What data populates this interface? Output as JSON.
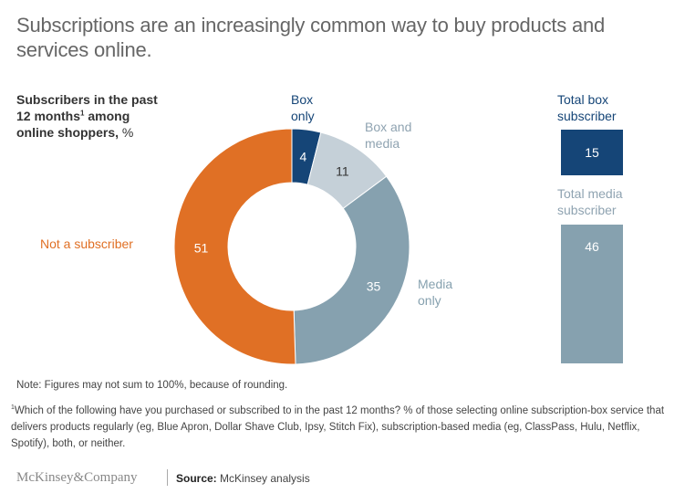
{
  "title": "Subscriptions are an increasingly common way to buy products and services online.",
  "subtitle": {
    "line1": "Subscribers in the past",
    "line2_text": "12 months",
    "line2_sup": "1",
    "line2_after": " among",
    "line3": "online shoppers,",
    "unit": " %"
  },
  "chart_data": [
    {
      "type": "pie",
      "variant": "donut",
      "title": "Subscribers in the past 12 months among online shoppers, %",
      "slices": [
        {
          "name": "Box only",
          "value": 4,
          "color": "#154577",
          "label_color": "#154577",
          "value_color": "#ffffff"
        },
        {
          "name": "Box and media",
          "value": 11,
          "color": "#c5d0d8",
          "label_color": "#8fa3b1",
          "value_color": "#333333"
        },
        {
          "name": "Media only",
          "value": 35,
          "color": "#86a1af",
          "label_color": "#86a1af",
          "value_color": "#ffffff"
        },
        {
          "name": "Not a subscriber",
          "value": 51,
          "color": "#e07025",
          "label_color": "#e07025",
          "value_color": "#ffffff"
        }
      ],
      "labels": {
        "box_only": [
          "Box",
          "only"
        ],
        "box_and_media": [
          "Box and",
          "media"
        ],
        "media_only": [
          "Media",
          "only"
        ],
        "not_subscriber": [
          "Not a subscriber"
        ]
      },
      "start": "12 o'clock, clockwise"
    },
    {
      "type": "bar",
      "orientation": "vertical",
      "categories": [
        "Total box subscriber",
        "Total media subscriber"
      ],
      "values": [
        15,
        46
      ],
      "colors": [
        "#154577",
        "#86a1af"
      ],
      "label_colors": [
        "#154577",
        "#8fa3b1"
      ],
      "title_lines": [
        [
          "Total box",
          "subscriber"
        ],
        [
          "Total media",
          "subscriber"
        ]
      ]
    }
  ],
  "note": "Note: Figures may not sum to 100%, because of rounding.",
  "footnote": {
    "marker": "1",
    "text": "Which of the following have you purchased or subscribed to in the past 12 months? % of those selecting online subscription-box service that delivers products regularly (eg, Blue Apron, Dollar Shave Club, Ipsy, Stitch Fix), subscription-based media (eg, ClassPass, Hulu, Netflix, Spotify), both, or neither."
  },
  "brand": "McKinsey&Company",
  "source": {
    "label": "Source:",
    "text": " McKinsey analysis"
  }
}
